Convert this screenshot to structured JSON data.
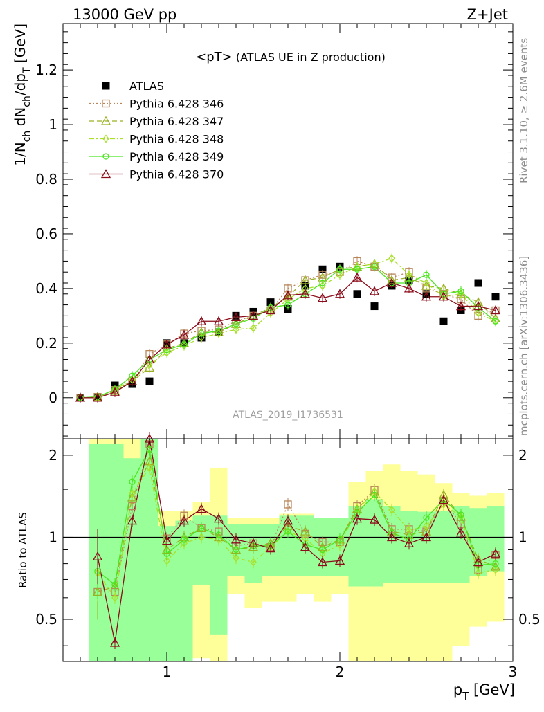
{
  "header": {
    "left": "13000 GeV pp",
    "right": "Z+Jet"
  },
  "side_labels": {
    "rivet": "Rivet 3.1.10, ≥ 2.6M events",
    "mcplots": "mcplots.cern.ch [arXiv:1306.3436]"
  },
  "chart_data": [
    {
      "type": "scatter",
      "panel": "main",
      "title": "<pT> (ATLAS UE in Z production)",
      "title_main": "<pT>",
      "title_sub": " (ATLAS UE in Z production)",
      "watermark": "ATLAS_2019_I1736531",
      "xlabel": "p_T [GeV]",
      "xlabel_main": "p",
      "xlabel_sub": "T",
      "xlabel_unit": " [GeV]",
      "ylabel": "1/N_ch dN_ch/dp_T [GeV]",
      "xlim": [
        0.4,
        3.0
      ],
      "ylim": [
        -0.15,
        1.37
      ],
      "x_ticks": [
        "1",
        "2",
        "3"
      ],
      "x_tick_values": [
        1,
        2,
        3
      ],
      "y_ticks": [
        "0",
        "0.2",
        "0.4",
        "0.6",
        "0.8",
        "1",
        "1.2"
      ],
      "y_tick_values": [
        0,
        0.2,
        0.4,
        0.6,
        0.8,
        1.0,
        1.2
      ],
      "legend_position": "top-left",
      "x": [
        0.5,
        0.6,
        0.7,
        0.8,
        0.9,
        1.0,
        1.1,
        1.2,
        1.3,
        1.4,
        1.5,
        1.6,
        1.7,
        1.8,
        1.9,
        2.0,
        2.1,
        2.2,
        2.3,
        2.4,
        2.5,
        2.6,
        2.7,
        2.8,
        2.9
      ],
      "series": [
        {
          "name": "ATLAS",
          "color": "#000000",
          "marker": "filled-square",
          "line": "none",
          "values": [
            0.0,
            0.0,
            0.045,
            0.05,
            0.06,
            0.2,
            0.2,
            0.22,
            0.24,
            0.3,
            0.315,
            0.35,
            0.325,
            0.41,
            0.47,
            0.48,
            0.38,
            0.335,
            0.41,
            0.43,
            0.38,
            0.28,
            0.32,
            0.42,
            0.37
          ]
        },
        {
          "name": "Pythia 6.428 346",
          "color": "#b8865a",
          "marker": "open-square",
          "line": "dotted",
          "values": [
            0.0,
            0.003,
            0.028,
            0.06,
            0.16,
            0.195,
            0.235,
            0.245,
            0.25,
            0.28,
            0.3,
            0.32,
            0.4,
            0.43,
            0.45,
            0.46,
            0.5,
            0.48,
            0.44,
            0.46,
            0.4,
            0.38,
            0.36,
            0.3,
            0.32
          ]
        },
        {
          "name": "Pythia 6.428 347",
          "color": "#9bb022",
          "marker": "open-triangle",
          "line": "dashed",
          "values": [
            0.0,
            0.003,
            0.025,
            0.06,
            0.11,
            0.18,
            0.2,
            0.24,
            0.24,
            0.27,
            0.3,
            0.33,
            0.37,
            0.43,
            0.44,
            0.47,
            0.48,
            0.49,
            0.43,
            0.44,
            0.41,
            0.4,
            0.38,
            0.35,
            0.29
          ]
        },
        {
          "name": "Pythia 6.428 348",
          "color": "#a8e02a",
          "marker": "open-diamond",
          "line": "dashdot",
          "values": [
            0.0,
            0.002,
            0.03,
            0.065,
            0.12,
            0.165,
            0.19,
            0.22,
            0.235,
            0.25,
            0.255,
            0.31,
            0.36,
            0.4,
            0.41,
            0.45,
            0.48,
            0.49,
            0.51,
            0.45,
            0.42,
            0.37,
            0.38,
            0.31,
            0.28
          ]
        },
        {
          "name": "Pythia 6.428 349",
          "color": "#4be61e",
          "marker": "open-circle",
          "line": "solid",
          "values": [
            0.0,
            0.003,
            0.03,
            0.08,
            0.14,
            0.175,
            0.195,
            0.235,
            0.245,
            0.27,
            0.29,
            0.33,
            0.34,
            0.38,
            0.42,
            0.47,
            0.47,
            0.48,
            0.42,
            0.42,
            0.45,
            0.38,
            0.39,
            0.33,
            0.28
          ]
        },
        {
          "name": "Pythia 6.428 370",
          "color": "#8b0c1a",
          "marker": "open-triangle",
          "line": "solid",
          "values": [
            0.0,
            0.0,
            0.02,
            0.06,
            0.14,
            0.195,
            0.23,
            0.28,
            0.28,
            0.295,
            0.3,
            0.32,
            0.375,
            0.38,
            0.365,
            0.38,
            0.44,
            0.39,
            0.42,
            0.4,
            0.37,
            0.37,
            0.335,
            0.335,
            0.32
          ]
        }
      ]
    },
    {
      "type": "line",
      "panel": "ratio",
      "ylabel": "Ratio to ATLAS",
      "yscale": "log",
      "xlim": [
        0.4,
        3.0
      ],
      "ylim": [
        0.35,
        2.3
      ],
      "y_ticks": [
        "0.5",
        "1",
        "2"
      ],
      "y_tick_values": [
        0.5,
        1.0,
        2.0
      ],
      "reference_line": 1.0,
      "x": [
        0.6,
        0.7,
        0.8,
        0.9,
        1.0,
        1.1,
        1.2,
        1.3,
        1.4,
        1.5,
        1.6,
        1.7,
        1.8,
        1.9,
        2.0,
        2.1,
        2.2,
        2.3,
        2.4,
        2.5,
        2.6,
        2.7,
        2.8,
        2.9
      ],
      "bands": {
        "bin_edges": [
          0.55,
          0.65,
          0.75,
          0.85,
          0.95,
          1.05,
          1.15,
          1.25,
          1.35,
          1.45,
          1.55,
          1.65,
          1.75,
          1.85,
          1.95,
          2.05,
          2.15,
          2.25,
          2.35,
          2.45,
          2.55,
          2.65,
          2.75,
          2.85,
          2.95
        ],
        "outer_color": "#ffff99",
        "inner_color": "#99ff99",
        "outer_low": [
          0.33,
          0.33,
          0.33,
          0.33,
          0.33,
          0.33,
          0.36,
          0.33,
          0.62,
          0.55,
          0.58,
          0.58,
          0.62,
          0.58,
          0.62,
          0.33,
          0.33,
          0.33,
          0.33,
          0.33,
          0.33,
          0.4,
          0.47,
          0.49,
          0.33
        ],
        "outer_high": [
          2.35,
          2.35,
          2.35,
          2.35,
          1.25,
          1.25,
          1.35,
          1.8,
          1.18,
          1.18,
          1.18,
          1.22,
          1.22,
          1.18,
          1.18,
          1.6,
          1.75,
          1.85,
          1.75,
          1.7,
          1.58,
          1.45,
          1.42,
          1.45,
          1.5
        ],
        "inner_low": [
          0.33,
          0.33,
          0.33,
          0.33,
          0.33,
          0.33,
          0.67,
          0.44,
          0.72,
          0.68,
          0.72,
          0.72,
          0.72,
          0.72,
          0.72,
          0.66,
          0.66,
          0.68,
          0.68,
          0.68,
          0.68,
          0.68,
          0.72,
          0.75,
          0.76
        ],
        "inner_high": [
          2.2,
          2.2,
          1.95,
          2.35,
          1.1,
          1.15,
          1.2,
          1.2,
          1.12,
          1.12,
          1.12,
          1.2,
          1.2,
          1.18,
          1.18,
          1.3,
          1.38,
          1.3,
          1.25,
          1.24,
          1.25,
          1.3,
          1.28,
          1.3,
          1.3
        ]
      },
      "series": [
        {
          "name": "Pythia 6.428 346",
          "color": "#b8865a",
          "marker": "open-square",
          "line": "dotted",
          "values": [
            0.63,
            0.63,
            1.3,
            2.2,
            0.99,
            1.2,
            1.08,
            1.05,
            0.93,
            0.95,
            0.92,
            1.32,
            1.03,
            0.96,
            0.96,
            1.3,
            1.49,
            1.07,
            1.07,
            1.05,
            1.36,
            1.12,
            0.76,
            0.86
          ]
        },
        {
          "name": "Pythia 6.428 347",
          "color": "#9bb022",
          "marker": "open-triangle",
          "line": "dashed",
          "values": [
            0.63,
            0.66,
            1.4,
            1.9,
            0.9,
            1.0,
            1.08,
            1.0,
            0.9,
            0.92,
            0.95,
            1.1,
            1.05,
            0.92,
            0.98,
            1.27,
            1.47,
            1.05,
            1.02,
            1.05,
            1.43,
            1.19,
            0.83,
            0.78
          ]
        },
        {
          "name": "Pythia 6.428 348",
          "color": "#a8e02a",
          "marker": "open-diamond",
          "line": "dashdot",
          "values": [
            0.74,
            0.6,
            1.45,
            1.8,
            0.82,
            0.95,
            1.0,
            0.98,
            0.84,
            0.81,
            0.92,
            1.05,
            0.99,
            0.87,
            0.94,
            1.26,
            1.47,
            1.26,
            1.06,
            1.1,
            1.32,
            1.19,
            0.74,
            0.76
          ]
        },
        {
          "name": "Pythia 6.428 349",
          "color": "#4be61e",
          "marker": "open-circle",
          "line": "solid",
          "values": [
            0.75,
            0.67,
            1.6,
            2.1,
            0.87,
            0.98,
            1.08,
            1.02,
            0.9,
            0.93,
            0.93,
            1.05,
            0.94,
            0.9,
            0.98,
            1.23,
            1.43,
            1.04,
            0.98,
            1.18,
            1.37,
            1.21,
            0.79,
            0.8
          ]
        },
        {
          "name": "Pythia 6.428 370",
          "color": "#8b0c1a",
          "marker": "open-triangle",
          "line": "solid",
          "values": [
            0.85,
            0.41,
            1.15,
            2.3,
            0.97,
            1.15,
            1.27,
            1.17,
            0.98,
            0.95,
            0.91,
            1.15,
            0.92,
            0.81,
            0.82,
            1.17,
            1.16,
            1.0,
            0.95,
            1.0,
            1.37,
            1.04,
            0.81,
            0.87
          ]
        }
      ]
    }
  ]
}
